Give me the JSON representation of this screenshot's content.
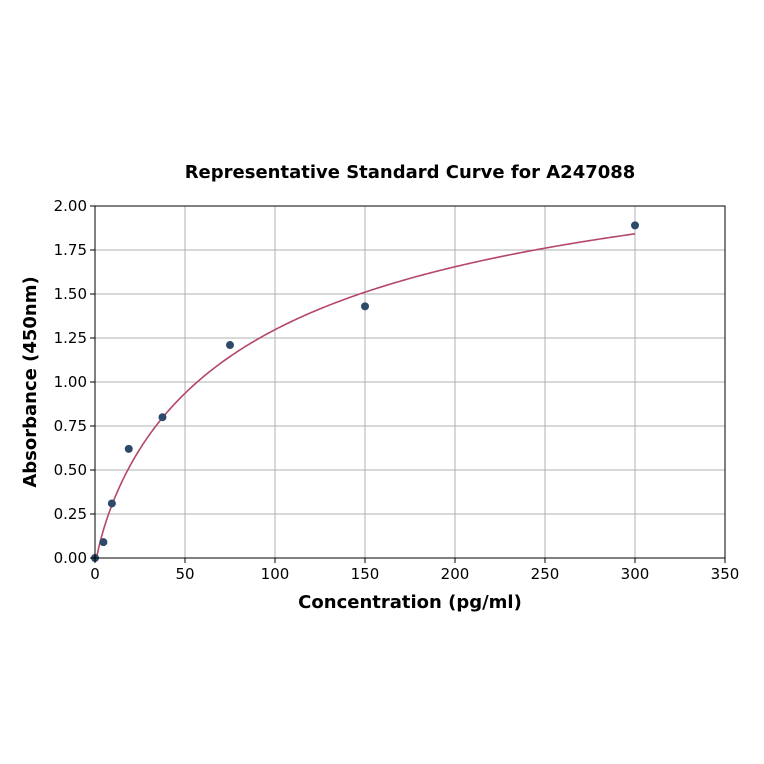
{
  "chart_data": {
    "type": "scatter",
    "title": "Representative Standard Curve for A247088",
    "xlabel": "Concentration (pg/ml)",
    "ylabel": "Absorbance (450nm)",
    "xlim": [
      0,
      350
    ],
    "ylim": [
      0,
      2.0
    ],
    "xticks": [
      "0",
      "50",
      "100",
      "150",
      "200",
      "250",
      "300",
      "350"
    ],
    "yticks": [
      "0.00",
      "0.25",
      "0.50",
      "0.75",
      "1.00",
      "1.25",
      "1.50",
      "1.75",
      "2.00"
    ],
    "grid": true,
    "points": {
      "x": [
        0,
        4.69,
        9.38,
        18.75,
        37.5,
        75,
        150,
        300
      ],
      "y": [
        0.0,
        0.09,
        0.31,
        0.62,
        0.8,
        1.21,
        1.43,
        1.89
      ]
    },
    "fit_curve": {
      "type": "fitted-curve",
      "x_range": [
        0,
        300
      ]
    },
    "colors": {
      "points": "#2e4a6b",
      "curve": "#b5476a",
      "grid": "#b0b0b0"
    }
  }
}
